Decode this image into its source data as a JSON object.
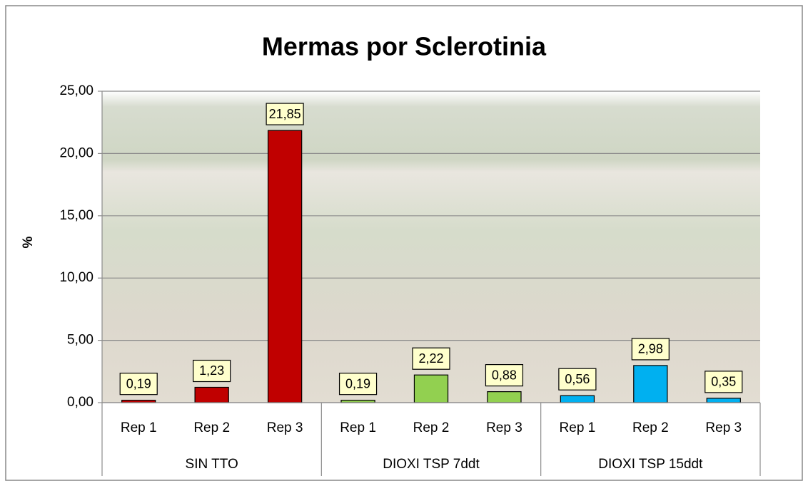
{
  "chart_data": {
    "type": "bar",
    "title": "Mermas por Sclerotinia",
    "y_label": "%",
    "categories": [
      "Rep 1",
      "Rep 2",
      "Rep 3"
    ],
    "series": [
      {
        "name": "SIN TTO",
        "color": "#c00000",
        "values": [
          0.19,
          1.23,
          21.85
        ],
        "value_labels": [
          "0,19",
          "1,23",
          "21,85"
        ]
      },
      {
        "name": "DIOXI TSP 7ddt",
        "color": "#92d050",
        "values": [
          0.19,
          2.22,
          0.88
        ],
        "value_labels": [
          "0,19",
          "2,22",
          "0,88"
        ]
      },
      {
        "name": "DIOXI TSP 15ddt",
        "color": "#00b0f0",
        "values": [
          0.56,
          2.98,
          0.35
        ],
        "value_labels": [
          "0,56",
          "2,98",
          "0,35"
        ]
      }
    ],
    "ylim": [
      0,
      25
    ],
    "yticks": [
      {
        "value": 0,
        "label": "0,00"
      },
      {
        "value": 5,
        "label": "5,00"
      },
      {
        "value": 10,
        "label": "10,00"
      },
      {
        "value": 15,
        "label": "15,00"
      },
      {
        "value": 20,
        "label": "20,00"
      },
      {
        "value": 25,
        "label": "25,00"
      }
    ],
    "grid": true
  }
}
